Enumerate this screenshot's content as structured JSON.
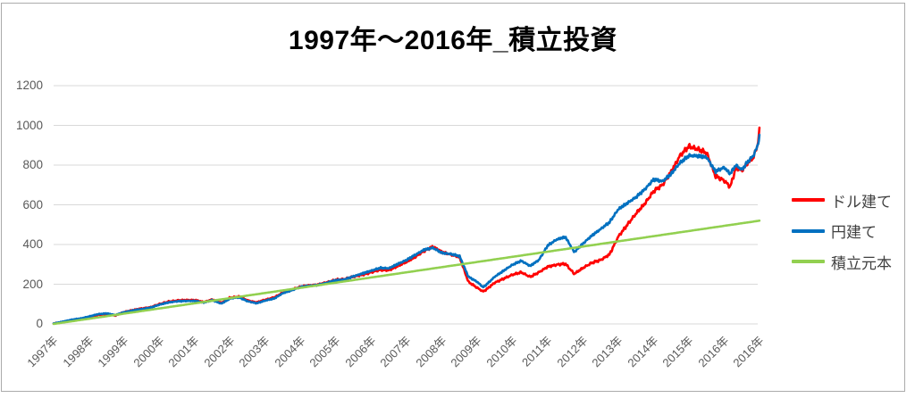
{
  "frame": {
    "background": "#ffffff",
    "border_color": "#ababab"
  },
  "chart_data": {
    "type": "line",
    "title": "1997年～2016年_積立投資",
    "xlabel": "",
    "ylabel": "",
    "x_range": [
      1997,
      2017
    ],
    "ylim": [
      0,
      1200
    ],
    "y_ticks": [
      0,
      200,
      400,
      600,
      800,
      1000,
      1200
    ],
    "x_tick_labels": [
      "1997年",
      "1998年",
      "1999年",
      "2000年",
      "2001年",
      "2002年",
      "2003年",
      "2004年",
      "2005年",
      "2006年",
      "2007年",
      "2008年",
      "2009年",
      "2010年",
      "2011年",
      "2012年",
      "2013年",
      "2014年",
      "2015年",
      "2016年",
      "2016年"
    ],
    "grid": "horizontal-only",
    "grid_color": "#d9d9d9",
    "axis_label_color": "#595959",
    "legend_position": "right",
    "legend_text_color": "#404040",
    "series": [
      {
        "id": "usd",
        "name": "ドル建て",
        "color": "#ff0000",
        "jitter": 1,
        "anchors": [
          [
            1997.0,
            2
          ],
          [
            1997.25,
            9
          ],
          [
            1997.5,
            18
          ],
          [
            1997.75,
            24
          ],
          [
            1998.0,
            33
          ],
          [
            1998.25,
            45
          ],
          [
            1998.5,
            50
          ],
          [
            1998.75,
            42
          ],
          [
            1999.0,
            60
          ],
          [
            1999.25,
            70
          ],
          [
            1999.5,
            78
          ],
          [
            1999.75,
            84
          ],
          [
            2000.0,
            100
          ],
          [
            2000.25,
            112
          ],
          [
            2000.5,
            118
          ],
          [
            2000.75,
            120
          ],
          [
            2001.0,
            120
          ],
          [
            2001.25,
            110
          ],
          [
            2001.5,
            123
          ],
          [
            2001.75,
            106
          ],
          [
            2002.0,
            132
          ],
          [
            2002.25,
            138
          ],
          [
            2002.5,
            118
          ],
          [
            2002.75,
            108
          ],
          [
            2003.0,
            122
          ],
          [
            2003.25,
            133
          ],
          [
            2003.5,
            158
          ],
          [
            2003.75,
            172
          ],
          [
            2004.0,
            188
          ],
          [
            2004.25,
            194
          ],
          [
            2004.5,
            198
          ],
          [
            2004.75,
            210
          ],
          [
            2005.0,
            222
          ],
          [
            2005.25,
            226
          ],
          [
            2005.5,
            238
          ],
          [
            2005.75,
            248
          ],
          [
            2006.0,
            260
          ],
          [
            2006.25,
            273
          ],
          [
            2006.5,
            270
          ],
          [
            2006.75,
            292
          ],
          [
            2007.0,
            312
          ],
          [
            2007.25,
            338
          ],
          [
            2007.5,
            368
          ],
          [
            2007.75,
            390
          ],
          [
            2008.0,
            362
          ],
          [
            2008.25,
            350
          ],
          [
            2008.5,
            338
          ],
          [
            2008.75,
            212
          ],
          [
            2009.0,
            182
          ],
          [
            2009.17,
            163
          ],
          [
            2009.25,
            172
          ],
          [
            2009.5,
            208
          ],
          [
            2009.75,
            228
          ],
          [
            2010.0,
            248
          ],
          [
            2010.25,
            260
          ],
          [
            2010.5,
            237
          ],
          [
            2010.75,
            260
          ],
          [
            2011.0,
            288
          ],
          [
            2011.25,
            298
          ],
          [
            2011.5,
            303
          ],
          [
            2011.75,
            252
          ],
          [
            2012.0,
            282
          ],
          [
            2012.25,
            308
          ],
          [
            2012.5,
            322
          ],
          [
            2012.75,
            350
          ],
          [
            2013.0,
            440
          ],
          [
            2013.25,
            498
          ],
          [
            2013.5,
            556
          ],
          [
            2013.75,
            606
          ],
          [
            2014.0,
            668
          ],
          [
            2014.25,
            700
          ],
          [
            2014.5,
            768
          ],
          [
            2014.75,
            848
          ],
          [
            2015.0,
            895
          ],
          [
            2015.25,
            880
          ],
          [
            2015.5,
            862
          ],
          [
            2015.75,
            745
          ],
          [
            2016.0,
            722
          ],
          [
            2016.17,
            690
          ],
          [
            2016.33,
            786
          ],
          [
            2016.5,
            772
          ],
          [
            2016.67,
            812
          ],
          [
            2016.83,
            838
          ],
          [
            2016.95,
            905
          ],
          [
            2017.0,
            978
          ]
        ]
      },
      {
        "id": "jpy",
        "name": "円建て",
        "color": "#0070c0",
        "jitter": 1,
        "anchors": [
          [
            1997.0,
            2
          ],
          [
            1997.25,
            11
          ],
          [
            1997.5,
            21
          ],
          [
            1997.75,
            27
          ],
          [
            1998.0,
            37
          ],
          [
            1998.25,
            49
          ],
          [
            1998.5,
            53
          ],
          [
            1998.75,
            45
          ],
          [
            1999.0,
            59
          ],
          [
            1999.25,
            68
          ],
          [
            1999.5,
            75
          ],
          [
            1999.75,
            82
          ],
          [
            2000.0,
            97
          ],
          [
            2000.25,
            108
          ],
          [
            2000.5,
            114
          ],
          [
            2000.75,
            116
          ],
          [
            2001.0,
            116
          ],
          [
            2001.25,
            107
          ],
          [
            2001.5,
            120
          ],
          [
            2001.75,
            102
          ],
          [
            2002.0,
            128
          ],
          [
            2002.25,
            134
          ],
          [
            2002.5,
            114
          ],
          [
            2002.75,
            104
          ],
          [
            2003.0,
            118
          ],
          [
            2003.25,
            128
          ],
          [
            2003.5,
            155
          ],
          [
            2003.75,
            170
          ],
          [
            2004.0,
            186
          ],
          [
            2004.25,
            192
          ],
          [
            2004.5,
            196
          ],
          [
            2004.75,
            208
          ],
          [
            2005.0,
            220
          ],
          [
            2005.25,
            224
          ],
          [
            2005.5,
            240
          ],
          [
            2005.75,
            254
          ],
          [
            2006.0,
            268
          ],
          [
            2006.25,
            282
          ],
          [
            2006.5,
            280
          ],
          [
            2006.75,
            302
          ],
          [
            2007.0,
            322
          ],
          [
            2007.25,
            348
          ],
          [
            2007.5,
            374
          ],
          [
            2007.75,
            383
          ],
          [
            2008.0,
            358
          ],
          [
            2008.25,
            352
          ],
          [
            2008.5,
            342
          ],
          [
            2008.75,
            238
          ],
          [
            2009.0,
            212
          ],
          [
            2009.17,
            185
          ],
          [
            2009.25,
            196
          ],
          [
            2009.5,
            238
          ],
          [
            2009.75,
            268
          ],
          [
            2010.0,
            298
          ],
          [
            2010.25,
            318
          ],
          [
            2010.5,
            292
          ],
          [
            2010.75,
            322
          ],
          [
            2011.0,
            395
          ],
          [
            2011.25,
            425
          ],
          [
            2011.5,
            438
          ],
          [
            2011.75,
            362
          ],
          [
            2012.0,
            405
          ],
          [
            2012.25,
            445
          ],
          [
            2012.5,
            478
          ],
          [
            2012.75,
            512
          ],
          [
            2013.0,
            578
          ],
          [
            2013.25,
            608
          ],
          [
            2013.5,
            638
          ],
          [
            2013.75,
            678
          ],
          [
            2014.0,
            728
          ],
          [
            2014.25,
            718
          ],
          [
            2014.5,
            756
          ],
          [
            2014.75,
            812
          ],
          [
            2015.0,
            848
          ],
          [
            2015.25,
            846
          ],
          [
            2015.5,
            840
          ],
          [
            2015.75,
            768
          ],
          [
            2016.0,
            788
          ],
          [
            2016.17,
            756
          ],
          [
            2016.33,
            800
          ],
          [
            2016.5,
            776
          ],
          [
            2016.67,
            818
          ],
          [
            2016.83,
            848
          ],
          [
            2016.95,
            900
          ],
          [
            2017.0,
            948
          ]
        ]
      },
      {
        "id": "principal",
        "name": "積立元本",
        "color": "#92d050",
        "jitter": 0,
        "anchors": [
          [
            1997.0,
            0
          ],
          [
            2017.0,
            520
          ]
        ]
      }
    ]
  }
}
